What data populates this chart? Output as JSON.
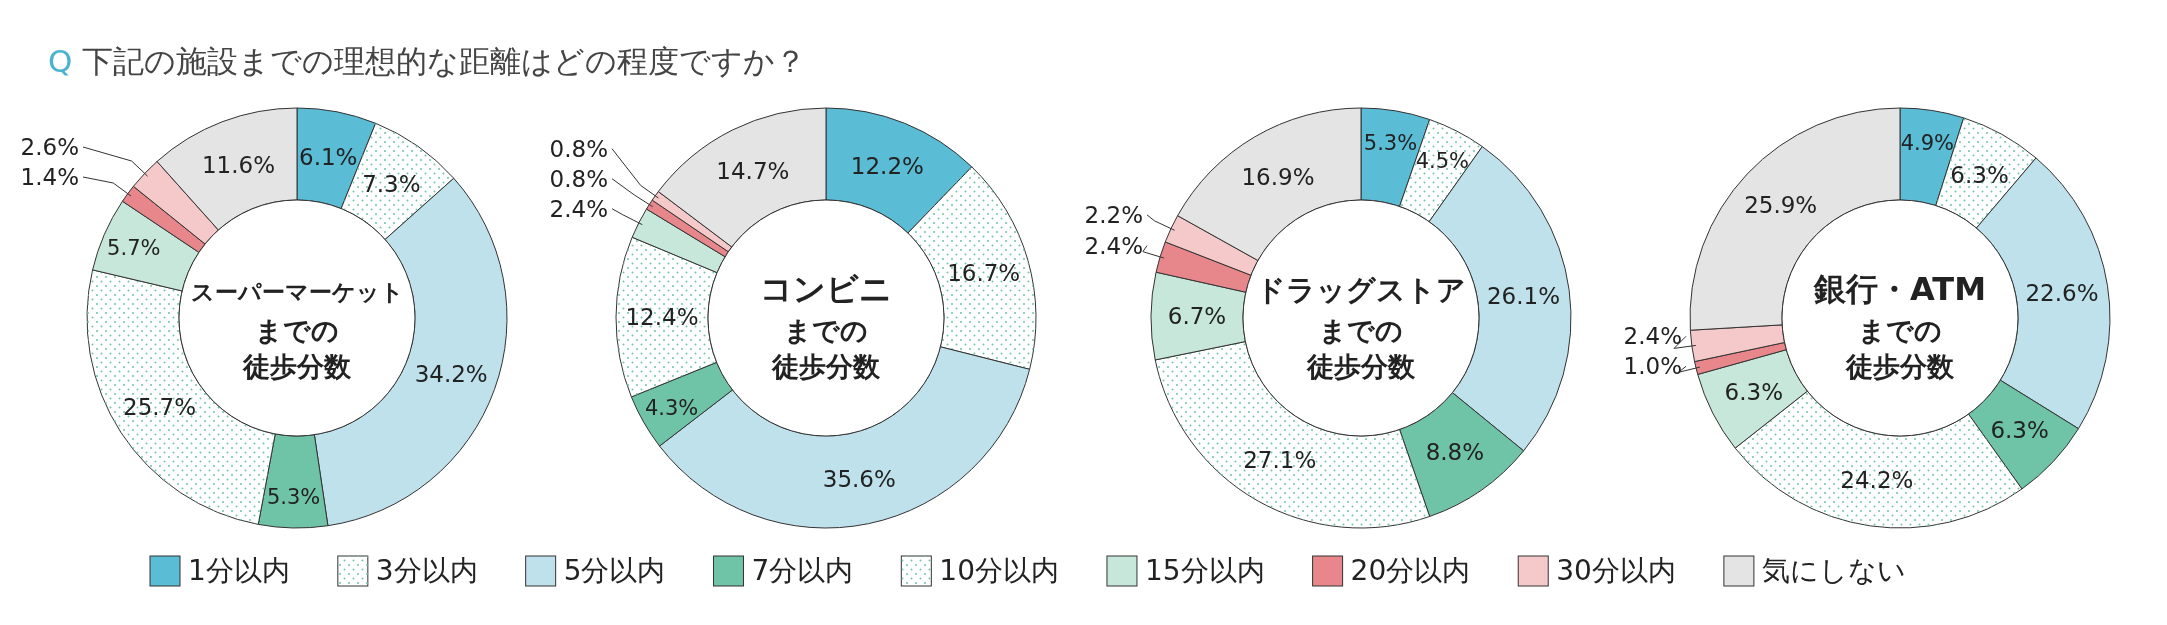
{
  "chart_data": [
    {
      "type": "donut",
      "title": "スーパーマーケット",
      "subtitle": "までの徒歩分数",
      "annotations": [
        "Q 下記の施設までの理想的な距離はどの程度ですか？"
      ],
      "legend": "bottom",
      "categories": [
        "1分以内",
        "3分以内",
        "5分以内",
        "7分以内",
        "10分以内",
        "15分以内",
        "20分以内",
        "30分以内",
        "気にしない"
      ],
      "colors": [
        "#5bbcd6",
        "#ffffff",
        "#bfe1ec",
        "#6fc3a6",
        "#ffffff",
        "#c6e7da",
        "#e8878b",
        "#f5c9c9",
        "#e4e4e4"
      ],
      "values": [
        6.1,
        7.3,
        34.2,
        5.3,
        25.7,
        5.7,
        1.4,
        2.6,
        11.6
      ],
      "value_labels": [
        "6.1%",
        "7.3%",
        "34.2%",
        "5.3%",
        "25.7%",
        "5.7%",
        "1.4%",
        "2.6%",
        "11.6%"
      ]
    },
    {
      "type": "donut",
      "title": "コンビニ",
      "subtitle": "までの徒歩分数",
      "categories": [
        null,
        null,
        null,
        null,
        null,
        null,
        null,
        null,
        null
      ],
      "colors": [
        "#5bbcd6",
        "#ffffff",
        "#bfe1ec",
        "#6fc3a6",
        "#ffffff",
        "#c6e7da",
        "#e8878b",
        "#f5c9c9",
        "#e4e4e4"
      ],
      "values": [
        12.2,
        16.7,
        35.6,
        4.3,
        12.4,
        2.4,
        0.8,
        0.8,
        14.7
      ],
      "value_labels": [
        "12.2%",
        "16.7%",
        "35.6%",
        "4.3%",
        "12.4%",
        "2.4%",
        "0.8%",
        "0.8%",
        "14.7%"
      ]
    },
    {
      "type": "donut",
      "title": "ドラッグストア",
      "subtitle": "までの徒歩分数",
      "categories": [
        null,
        null,
        null,
        null,
        null,
        null,
        null,
        null,
        null
      ],
      "colors": [
        "#5bbcd6",
        "#ffffff",
        "#bfe1ec",
        "#6fc3a6",
        "#ffffff",
        "#c6e7da",
        "#e8878b",
        "#f5c9c9",
        "#e4e4e4"
      ],
      "values": [
        5.3,
        4.5,
        26.1,
        8.8,
        27.1,
        6.7,
        2.4,
        2.2,
        16.9
      ],
      "value_labels": [
        "5.3%",
        "4.5%",
        "26.1%",
        "8.8%",
        "27.1%",
        "6.7%",
        "2.4%",
        "2.2%",
        "16.9%"
      ]
    },
    {
      "type": "donut",
      "title": "銀行・ATM",
      "subtitle": "までの徒歩分数",
      "categories": [
        null,
        null,
        null,
        null,
        null,
        null,
        null,
        null,
        null
      ],
      "colors": [
        "#5bbcd6",
        "#ffffff",
        "#bfe1ec",
        "#6fc3a6",
        "#ffffff",
        "#c6e7da",
        "#e8878b",
        "#f5c9c9",
        "#e4e4e4"
      ],
      "values": [
        4.9,
        6.3,
        22.6,
        6.3,
        24.2,
        6.3,
        1.0,
        2.4,
        25.9
      ],
      "value_labels": [
        "4.9%",
        "6.3%",
        "22.6%",
        "6.3%",
        "24.2%",
        "6.3%",
        "1.0%",
        "2.4%",
        "25.9%"
      ]
    }
  ]
}
